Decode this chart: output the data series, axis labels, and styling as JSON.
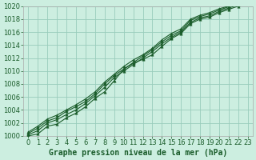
{
  "title": "Graphe pression niveau de la mer (hPa)",
  "bg_color": "#cceee0",
  "grid_color": "#99ccbb",
  "line_color": "#1a5c2a",
  "xlim": [
    -0.5,
    23.5
  ],
  "ylim": [
    1000,
    1020
  ],
  "xticks": [
    0,
    1,
    2,
    3,
    4,
    5,
    6,
    7,
    8,
    9,
    10,
    11,
    12,
    13,
    14,
    15,
    16,
    17,
    18,
    19,
    20,
    21,
    22,
    23
  ],
  "yticks": [
    1000,
    1002,
    1004,
    1006,
    1008,
    1010,
    1012,
    1014,
    1016,
    1018,
    1020
  ],
  "series": [
    [
      1000.0,
      1000.3,
      1001.5,
      1001.8,
      1002.8,
      1003.5,
      1004.5,
      1005.8,
      1006.8,
      1008.5,
      1010.3,
      1011.2,
      1011.8,
      1012.5,
      1013.8,
      1015.0,
      1015.8,
      1017.3,
      1018.0,
      1018.3,
      1019.0,
      1019.5,
      1020.0,
      1020.5
    ],
    [
      1000.2,
      1000.8,
      1002.0,
      1002.5,
      1003.3,
      1004.0,
      1005.0,
      1006.2,
      1007.5,
      1009.0,
      1010.0,
      1011.0,
      1012.0,
      1013.0,
      1014.2,
      1015.2,
      1016.0,
      1017.5,
      1018.2,
      1018.5,
      1019.2,
      1019.7,
      1020.2,
      1020.8
    ],
    [
      1000.4,
      1001.2,
      1002.3,
      1002.8,
      1003.8,
      1004.5,
      1005.3,
      1006.5,
      1008.0,
      1009.3,
      1010.3,
      1011.3,
      1012.3,
      1013.3,
      1014.5,
      1015.5,
      1016.2,
      1017.8,
      1018.4,
      1018.8,
      1019.4,
      1019.9,
      1020.4,
      1021.0
    ],
    [
      1000.6,
      1001.5,
      1002.6,
      1003.2,
      1004.0,
      1004.8,
      1005.7,
      1006.8,
      1008.3,
      1009.5,
      1010.7,
      1011.7,
      1012.5,
      1013.5,
      1014.8,
      1015.8,
      1016.5,
      1018.0,
      1018.6,
      1019.0,
      1019.6,
      1020.0,
      1020.5,
      1021.2
    ]
  ],
  "title_fontsize": 7,
  "tick_fontsize": 6,
  "tick_color": "#1a5c2a"
}
